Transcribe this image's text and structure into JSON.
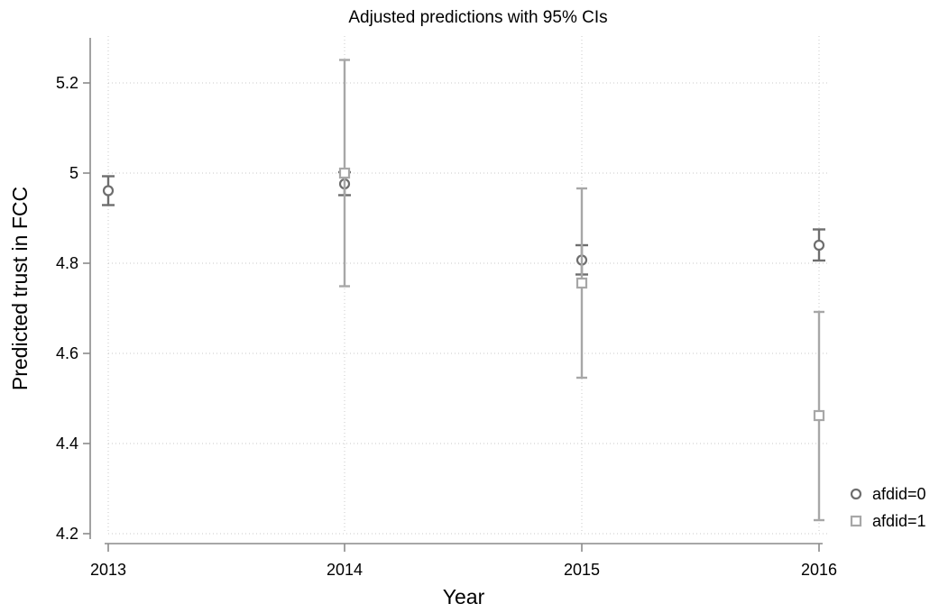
{
  "chart_data": {
    "type": "scatter",
    "title": "Adjusted predictions with 95% CIs",
    "xlabel": "Year",
    "ylabel": "Predicted trust in FCC",
    "categories": [
      "2013",
      "2014",
      "2015",
      "2016"
    ],
    "yticks": [
      "4.2",
      "4.4",
      "4.6",
      "4.8",
      "5",
      "5.2"
    ],
    "ylim": [
      4.2,
      5.3
    ],
    "grid": true,
    "legend_position": "right",
    "series": [
      {
        "name": "afdid=0",
        "marker": "circle",
        "color": "#6e6e6e",
        "values": [
          4.961,
          4.976,
          4.807,
          4.84
        ],
        "ci_low": [
          4.929,
          4.951,
          4.775,
          4.806
        ],
        "ci_high": [
          4.993,
          5.002,
          4.84,
          4.875
        ]
      },
      {
        "name": "afdid=1",
        "marker": "square",
        "color": "#a7a7a7",
        "values": [
          null,
          5.0,
          4.756,
          4.462
        ],
        "ci_low": [
          null,
          4.749,
          4.546,
          4.23
        ],
        "ci_high": [
          null,
          5.251,
          4.966,
          4.692
        ]
      }
    ]
  }
}
